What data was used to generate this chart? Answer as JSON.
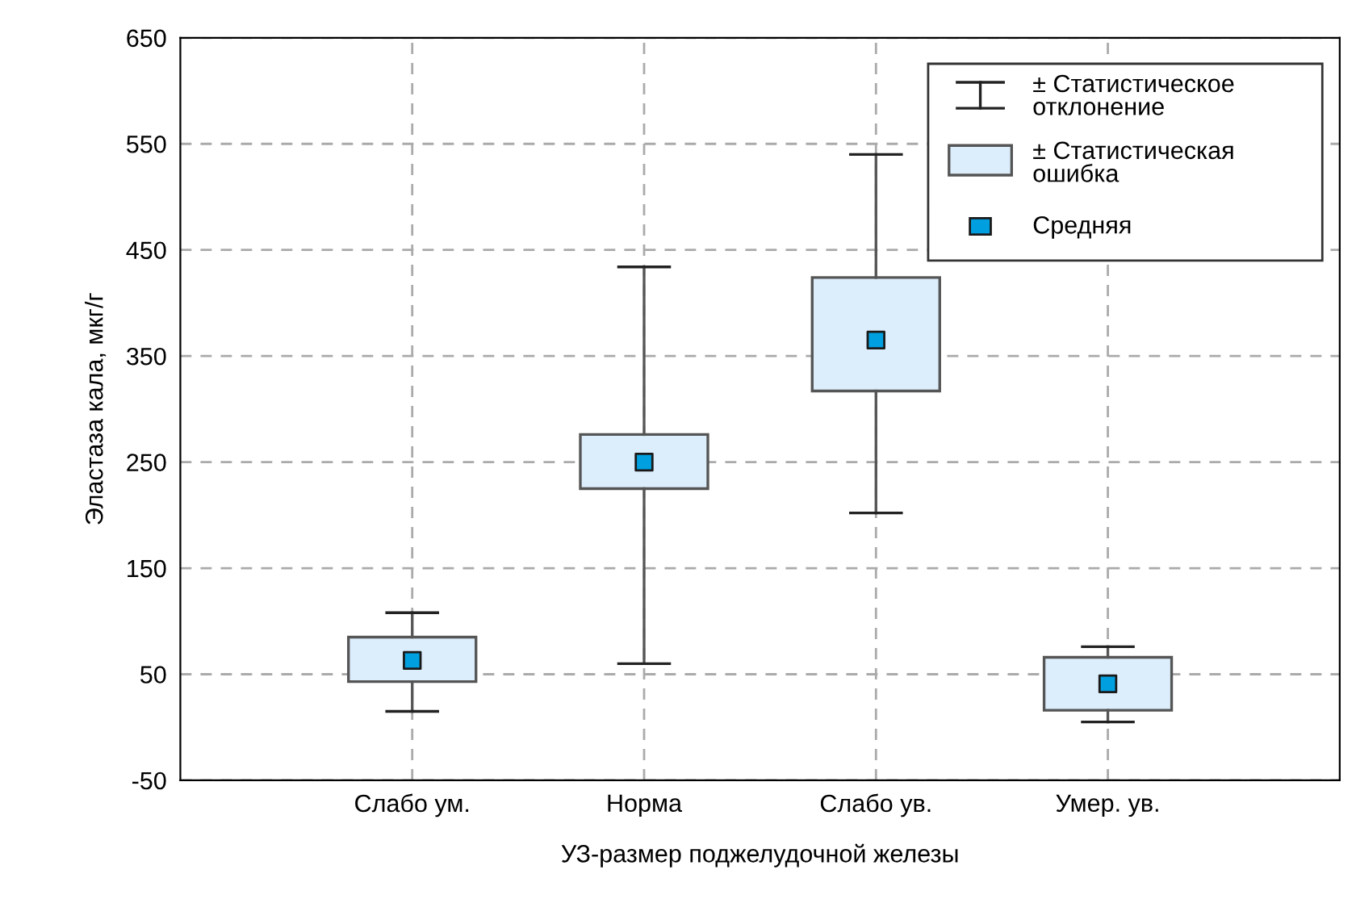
{
  "chart_data": {
    "type": "box",
    "xlabel": "УЗ-размер поджелудочной железы",
    "ylabel": "Эластаза кала, мкг/г",
    "categories": [
      "Слабо ум.",
      "Норма",
      "Слабо ув.",
      "Умер. ув."
    ],
    "boxes": [
      {
        "low": 15,
        "q1": 43,
        "q3": 85,
        "high": 108
      },
      {
        "low": 60,
        "q1": 225,
        "q3": 276,
        "high": 434
      },
      {
        "low": 202,
        "q1": 317,
        "q3": 424,
        "high": 540
      },
      {
        "low": 5,
        "q1": 16,
        "q3": 66,
        "high": 76
      }
    ],
    "color": "#dcedfb",
    "series": [
      {
        "type": "scatter",
        "x": [
          "Слабо ум.",
          "Норма",
          "Слабо ув.",
          "Умер. ув."
        ],
        "values": [
          63,
          250,
          365,
          41
        ],
        "color": "#00a0e0"
      }
    ],
    "marker": "square",
    "ylim": [
      -50,
      650
    ],
    "yticks": [
      -50,
      50,
      150,
      250,
      350,
      450,
      550,
      650
    ],
    "grid": true,
    "annotations": [
      "± Статистическое отклонение",
      "± Статистическая ошибка",
      "Средняя"
    ]
  }
}
